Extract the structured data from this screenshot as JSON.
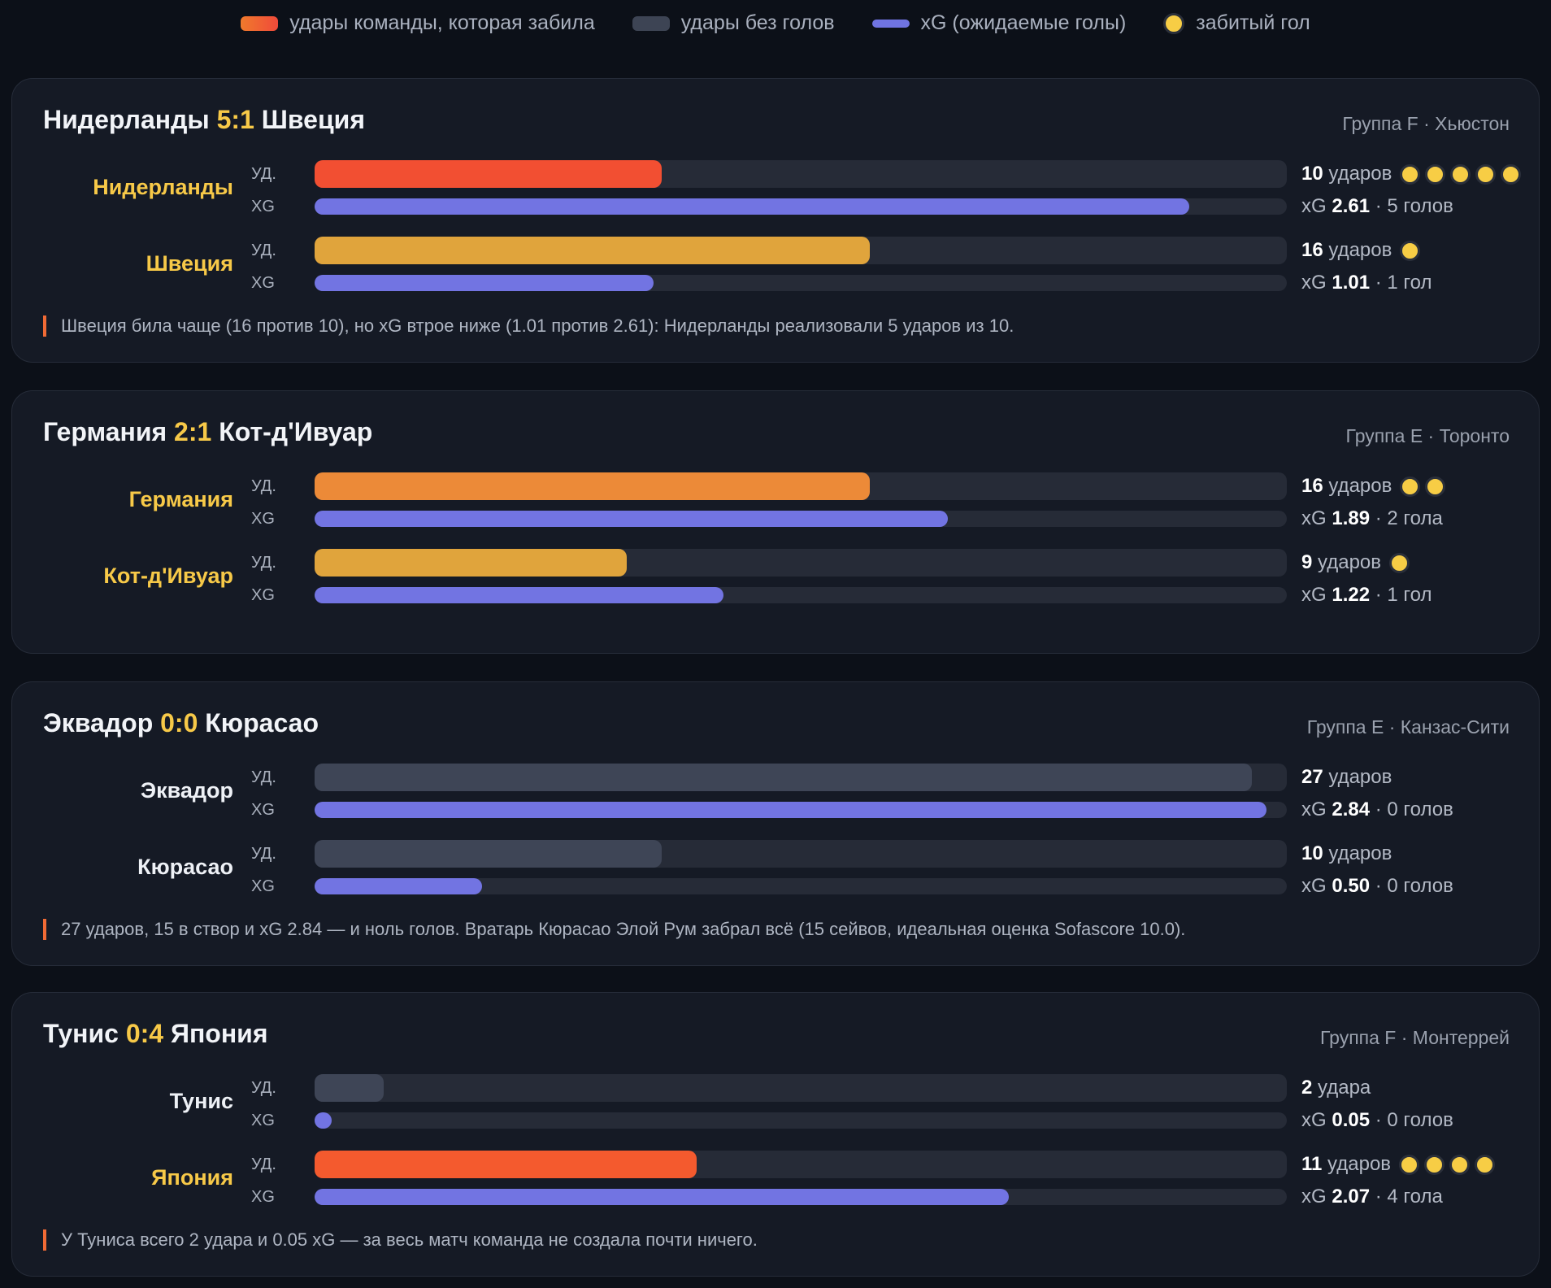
{
  "legend": [
    {
      "label": "удары команды, которая забила",
      "kind": "bar",
      "colors": [
        "#f07a2c",
        "#f04a3a"
      ]
    },
    {
      "label": "удары без голов",
      "kind": "bar",
      "colors": [
        "#3d4454",
        "#3d4454"
      ]
    },
    {
      "label": "xG (ожидаемые голы)",
      "kind": "xg",
      "colors": [
        "#7074e2",
        "#7074e2"
      ]
    },
    {
      "label": "забитый гол",
      "kind": "dot",
      "colors": [
        "#f7cd45",
        "#f7cd45"
      ]
    }
  ],
  "labels": {
    "shots": "УД.",
    "xg": "XG",
    "xg_prefix": "xG"
  },
  "scale": {
    "shots_max": 28,
    "xg_max": 2.9
  },
  "colors": {
    "scored_shots_palette": [
      "#f24f32",
      "#e0a43c",
      "#ec8a38",
      "#f45a2e"
    ],
    "no_goal_shots": "#3e4556",
    "xg": "#7274e2",
    "track": "#262b37",
    "goal": "#f7cd45",
    "score": "#f7c948"
  },
  "chart_data": {
    "type": "bar",
    "x_unit": "удары / xG",
    "matches": [
      {
        "home": "Нидерланды",
        "away": "Швеция",
        "score": "5:1",
        "meta": "Группа F · Хьюстон",
        "teams": [
          {
            "name": "Нидерланды",
            "shots": 10,
            "shots_text": "ударов",
            "xg": 2.61,
            "goals": 5,
            "goals_text": "5 голов",
            "shot_color": "#f24f32"
          },
          {
            "name": "Швеция",
            "shots": 16,
            "shots_text": "ударов",
            "xg": 1.01,
            "goals": 1,
            "goals_text": "1 гол",
            "shot_color": "#e0a43c"
          }
        ],
        "note": "Швеция била чаще (16 против 10), но xG втрое ниже (1.01 против 2.61): Нидерланды реализовали 5 ударов из 10."
      },
      {
        "home": "Германия",
        "away": "Кот-д'Ивуар",
        "score": "2:1",
        "meta": "Группа E · Торонто",
        "teams": [
          {
            "name": "Германия",
            "shots": 16,
            "shots_text": "ударов",
            "xg": 1.89,
            "goals": 2,
            "goals_text": "2 гола",
            "shot_color": "#ec8a38"
          },
          {
            "name": "Кот-д'Ивуар",
            "shots": 9,
            "shots_text": "ударов",
            "xg": 1.22,
            "goals": 1,
            "goals_text": "1 гол",
            "shot_color": "#e0a43c"
          }
        ],
        "note": ""
      },
      {
        "home": "Эквадор",
        "away": "Кюрасао",
        "score": "0:0",
        "meta": "Группа E · Канзас-Сити",
        "teams": [
          {
            "name": "Эквадор",
            "shots": 27,
            "shots_text": "ударов",
            "xg": 2.84,
            "goals": 0,
            "goals_text": "0 голов",
            "shot_color": "#3e4556"
          },
          {
            "name": "Кюрасао",
            "shots": 10,
            "shots_text": "ударов",
            "xg": 0.5,
            "goals": 0,
            "goals_text": "0 голов",
            "shot_color": "#3e4556"
          }
        ],
        "note": "27 ударов, 15 в створ и xG 2.84 — и ноль голов. Вратарь Кюрасао Элой Рум забрал всё (15 сейвов, идеальная оценка Sofascore 10.0)."
      },
      {
        "home": "Тунис",
        "away": "Япония",
        "score": "0:4",
        "meta": "Группа F · Монтеррей",
        "teams": [
          {
            "name": "Тунис",
            "shots": 2,
            "shots_text": "удара",
            "xg": 0.05,
            "goals": 0,
            "goals_text": "0 голов",
            "shot_color": "#3e4556"
          },
          {
            "name": "Япония",
            "shots": 11,
            "shots_text": "ударов",
            "xg": 2.07,
            "goals": 4,
            "goals_text": "4 гола",
            "shot_color": "#f45a2e"
          }
        ],
        "note": "У Туниса всего 2 удара и 0.05 xG — за весь матч команда не создала почти ничего."
      }
    ]
  }
}
